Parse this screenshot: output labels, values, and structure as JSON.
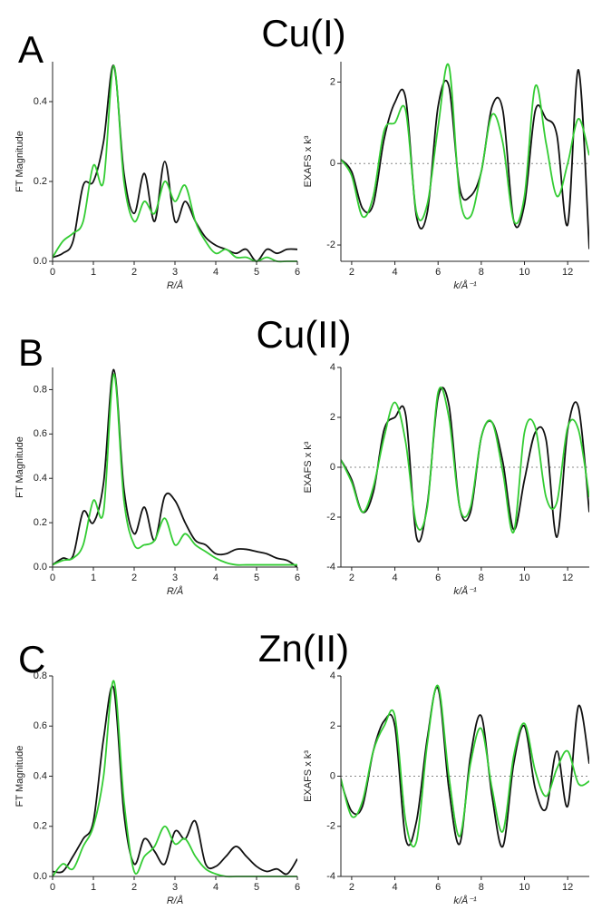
{
  "panels": [
    {
      "label": "A",
      "title": "Cu(I)"
    },
    {
      "label": "B",
      "title": "Cu(II)"
    },
    {
      "label": "C",
      "title": "Zn(II)"
    }
  ],
  "chart_data": [
    {
      "type": "line",
      "x_label": "R/Å",
      "y_label": "FT Magnitude",
      "x": [
        0,
        0.25,
        0.5,
        0.75,
        1,
        1.25,
        1.5,
        1.75,
        2,
        2.25,
        2.5,
        2.75,
        3,
        3.25,
        3.5,
        3.75,
        4,
        4.25,
        4.5,
        4.75,
        5,
        5.25,
        5.5,
        5.75,
        6
      ],
      "series": [
        {
          "color": "#111111",
          "values": [
            0.01,
            0.02,
            0.05,
            0.19,
            0.2,
            0.3,
            0.49,
            0.22,
            0.12,
            0.22,
            0.1,
            0.25,
            0.1,
            0.15,
            0.1,
            0.06,
            0.04,
            0.03,
            0.02,
            0.03,
            0.0,
            0.03,
            0.02,
            0.03,
            0.03
          ]
        },
        {
          "color": "#33cc33",
          "values": [
            0.01,
            0.05,
            0.07,
            0.1,
            0.24,
            0.2,
            0.49,
            0.2,
            0.1,
            0.15,
            0.12,
            0.2,
            0.15,
            0.19,
            0.1,
            0.05,
            0.02,
            0.03,
            0.01,
            0.01,
            0.0,
            0.01,
            0.0,
            0.0,
            0.0
          ]
        }
      ],
      "xlim": [
        0,
        6
      ],
      "ylim": [
        0,
        0.5
      ],
      "xticks": [
        0,
        1,
        2,
        3,
        4,
        5,
        6
      ],
      "yticks": [
        {
          "value": 0,
          "label": "0.0"
        },
        0.2,
        0.4
      ]
    },
    {
      "type": "line",
      "x_label": "k/Å⁻¹",
      "y_label": "EXAFS x k³",
      "zero_line": true,
      "x": [
        1.5,
        2,
        2.5,
        3,
        3.5,
        4,
        4.5,
        5,
        5.5,
        6,
        6.5,
        7,
        7.5,
        8,
        8.5,
        9,
        9.5,
        10,
        10.5,
        11,
        11.5,
        12,
        12.5,
        13
      ],
      "series": [
        {
          "color": "#111111",
          "values": [
            0.1,
            -0.2,
            -1.1,
            -1.0,
            0.6,
            1.5,
            1.6,
            -1.3,
            -1.2,
            1.4,
            1.9,
            -0.6,
            -0.8,
            -0.2,
            1.4,
            1.3,
            -1.4,
            -1.0,
            1.3,
            1.1,
            0.7,
            -1.5,
            2.3,
            -2.1
          ]
        },
        {
          "color": "#33cc33",
          "values": [
            0.1,
            -0.3,
            -1.3,
            -0.8,
            0.8,
            1.0,
            1.3,
            -1.2,
            -1.0,
            0.9,
            2.4,
            -0.8,
            -1.3,
            -0.2,
            1.2,
            0.5,
            -1.4,
            -0.8,
            1.9,
            0.5,
            -0.8,
            0.0,
            1.1,
            0.2
          ]
        }
      ],
      "xlim": [
        1.5,
        13
      ],
      "ylim": [
        -2.4,
        2.5
      ],
      "xticks": [
        2,
        4,
        6,
        8,
        10,
        12
      ],
      "yticks": [
        -2,
        0,
        2
      ]
    },
    {
      "type": "line",
      "x_label": "R/Å",
      "y_label": "FT Magnitude",
      "x": [
        0,
        0.25,
        0.5,
        0.75,
        1,
        1.25,
        1.5,
        1.75,
        2,
        2.25,
        2.5,
        2.75,
        3,
        3.25,
        3.5,
        3.75,
        4,
        4.25,
        4.5,
        4.75,
        5,
        5.25,
        5.5,
        5.75,
        6
      ],
      "series": [
        {
          "color": "#111111",
          "values": [
            0.01,
            0.04,
            0.05,
            0.25,
            0.2,
            0.38,
            0.89,
            0.35,
            0.15,
            0.27,
            0.12,
            0.32,
            0.3,
            0.2,
            0.12,
            0.1,
            0.06,
            0.06,
            0.08,
            0.08,
            0.07,
            0.06,
            0.04,
            0.03,
            0.0
          ]
        },
        {
          "color": "#33cc33",
          "values": [
            0.01,
            0.03,
            0.04,
            0.1,
            0.3,
            0.25,
            0.87,
            0.3,
            0.1,
            0.1,
            0.12,
            0.22,
            0.1,
            0.15,
            0.1,
            0.07,
            0.04,
            0.02,
            0.01,
            0.01,
            0.01,
            0.01,
            0.01,
            0.01,
            0.01
          ]
        }
      ],
      "xlim": [
        0,
        6
      ],
      "ylim": [
        0,
        0.9
      ],
      "xticks": [
        0,
        1,
        2,
        3,
        4,
        5,
        6
      ],
      "yticks": [
        {
          "value": 0,
          "label": "0.0"
        },
        0.2,
        0.4,
        0.6,
        0.8
      ]
    },
    {
      "type": "line",
      "x_label": "k/Å⁻¹",
      "y_label": "EXAFS x k³",
      "zero_line": true,
      "x": [
        1.5,
        2,
        2.5,
        3,
        3.5,
        4,
        4.5,
        5,
        5.5,
        6,
        6.5,
        7,
        7.5,
        8,
        8.5,
        9,
        9.5,
        10,
        10.5,
        11,
        11.5,
        12,
        12.5,
        13
      ],
      "series": [
        {
          "color": "#111111",
          "values": [
            0.3,
            -0.5,
            -1.8,
            -1.0,
            1.5,
            2.0,
            2.1,
            -2.8,
            -1.5,
            2.8,
            2.5,
            -1.6,
            -1.8,
            1.2,
            1.8,
            0.2,
            -2.5,
            -0.5,
            1.4,
            1.1,
            -2.8,
            1.5,
            2.4,
            -1.8
          ]
        },
        {
          "color": "#33cc33",
          "values": [
            0.3,
            -0.6,
            -1.8,
            -0.8,
            1.2,
            2.6,
            1.0,
            -2.3,
            -1.6,
            3.0,
            2.0,
            -1.6,
            -1.6,
            1.2,
            1.8,
            -0.2,
            -2.6,
            1.4,
            1.6,
            -1.2,
            -1.4,
            1.6,
            1.5,
            -1.2
          ]
        }
      ],
      "xlim": [
        1.5,
        13
      ],
      "ylim": [
        -4,
        4
      ],
      "xticks": [
        2,
        4,
        6,
        8,
        10,
        12
      ],
      "yticks": [
        -4,
        -2,
        0,
        2,
        4
      ]
    },
    {
      "type": "line",
      "x_label": "R/Å",
      "y_label": "FT Magnitude",
      "x": [
        0,
        0.25,
        0.5,
        0.75,
        1,
        1.25,
        1.5,
        1.75,
        2,
        2.25,
        2.5,
        2.75,
        3,
        3.25,
        3.5,
        3.75,
        4,
        4.25,
        4.5,
        4.75,
        5,
        5.25,
        5.5,
        5.75,
        6
      ],
      "series": [
        {
          "color": "#111111",
          "values": [
            0.02,
            0.02,
            0.08,
            0.15,
            0.22,
            0.55,
            0.75,
            0.25,
            0.05,
            0.15,
            0.1,
            0.05,
            0.18,
            0.15,
            0.22,
            0.05,
            0.04,
            0.08,
            0.12,
            0.08,
            0.04,
            0.02,
            0.03,
            0.01,
            0.07
          ]
        },
        {
          "color": "#33cc33",
          "values": [
            0.0,
            0.05,
            0.03,
            0.12,
            0.2,
            0.4,
            0.78,
            0.3,
            0.02,
            0.08,
            0.12,
            0.2,
            0.13,
            0.15,
            0.08,
            0.03,
            0.01,
            0.0,
            0.0,
            0,
            0,
            0,
            0,
            0,
            0
          ]
        }
      ],
      "xlim": [
        0,
        6
      ],
      "ylim": [
        0,
        0.8
      ],
      "xticks": [
        0,
        1,
        2,
        3,
        4,
        5,
        6
      ],
      "yticks": [
        {
          "value": 0,
          "label": "0.0"
        },
        0.2,
        0.4,
        0.6,
        0.8
      ]
    },
    {
      "type": "line",
      "x_label": "k/Å⁻¹",
      "y_label": "EXAFS x k³",
      "zero_line": true,
      "x": [
        1.5,
        2,
        2.5,
        3,
        3.5,
        4,
        4.5,
        5,
        5.5,
        6,
        6.5,
        7,
        7.5,
        8,
        8.5,
        9,
        9.5,
        10,
        10.5,
        11,
        11.5,
        12,
        12.5,
        13
      ],
      "series": [
        {
          "color": "#111111",
          "values": [
            -0.2,
            -1.4,
            -1.2,
            1.0,
            2.2,
            2.0,
            -2.5,
            -1.8,
            1.5,
            3.5,
            -0.5,
            -2.7,
            0.8,
            2.4,
            -0.8,
            -2.8,
            0.5,
            2.0,
            -0.5,
            -1.3,
            1.0,
            -1.2,
            2.8,
            0.5
          ]
        },
        {
          "color": "#33cc33",
          "values": [
            -0.1,
            -1.6,
            -1.0,
            1.0,
            2.0,
            2.4,
            -1.8,
            -2.6,
            1.3,
            3.6,
            0.0,
            -2.4,
            0.5,
            1.9,
            -0.5,
            -2.2,
            0.8,
            2.1,
            0.2,
            -0.8,
            0.3,
            1.0,
            -0.3,
            -0.2
          ]
        }
      ],
      "xlim": [
        1.5,
        13
      ],
      "ylim": [
        -4,
        4
      ],
      "xticks": [
        2,
        4,
        6,
        8,
        10,
        12
      ],
      "yticks": [
        -4,
        -2,
        0,
        2,
        4
      ]
    }
  ]
}
